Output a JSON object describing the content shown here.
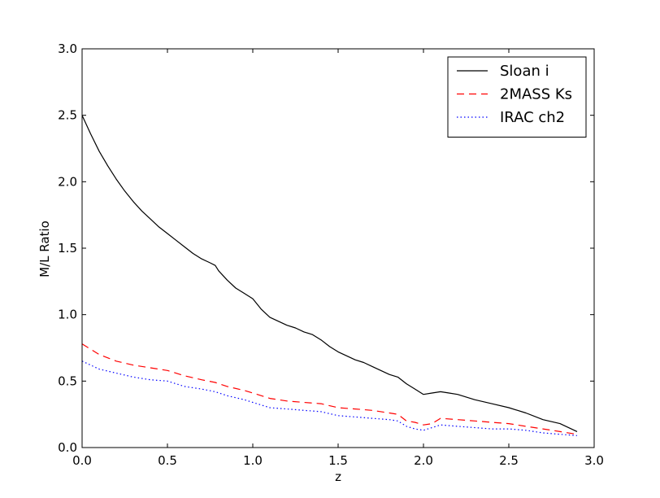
{
  "chart_data": {
    "type": "line",
    "title": "",
    "xlabel": "z",
    "ylabel": "M/L Ratio",
    "xlim": [
      0.0,
      3.0
    ],
    "ylim": [
      0.0,
      3.0
    ],
    "xticks": [
      "0.0",
      "0.5",
      "1.0",
      "1.5",
      "2.0",
      "2.5",
      "3.0"
    ],
    "yticks": [
      "0.0",
      "0.5",
      "1.0",
      "1.5",
      "2.0",
      "2.5",
      "3.0"
    ],
    "grid": false,
    "legend_position": "top-right",
    "series": [
      {
        "name": "Sloan i",
        "color": "#000000",
        "style": "solid",
        "x": [
          0.0,
          0.05,
          0.1,
          0.15,
          0.2,
          0.25,
          0.3,
          0.35,
          0.4,
          0.45,
          0.5,
          0.55,
          0.6,
          0.65,
          0.7,
          0.75,
          0.78,
          0.8,
          0.85,
          0.9,
          0.95,
          1.0,
          1.05,
          1.1,
          1.15,
          1.2,
          1.25,
          1.3,
          1.35,
          1.4,
          1.45,
          1.5,
          1.55,
          1.6,
          1.65,
          1.7,
          1.75,
          1.8,
          1.85,
          1.9,
          1.95,
          2.0,
          2.05,
          2.1,
          2.15,
          2.2,
          2.3,
          2.4,
          2.5,
          2.6,
          2.7,
          2.8,
          2.9
        ],
        "y": [
          2.5,
          2.36,
          2.23,
          2.12,
          2.02,
          1.93,
          1.85,
          1.78,
          1.72,
          1.66,
          1.61,
          1.56,
          1.51,
          1.46,
          1.42,
          1.39,
          1.37,
          1.33,
          1.26,
          1.2,
          1.16,
          1.12,
          1.04,
          0.98,
          0.95,
          0.92,
          0.9,
          0.87,
          0.85,
          0.81,
          0.76,
          0.72,
          0.69,
          0.66,
          0.64,
          0.61,
          0.58,
          0.55,
          0.53,
          0.48,
          0.44,
          0.4,
          0.41,
          0.42,
          0.41,
          0.4,
          0.36,
          0.33,
          0.3,
          0.26,
          0.21,
          0.18,
          0.12
        ]
      },
      {
        "name": "2MASS Ks",
        "color": "#ff0000",
        "style": "dashed",
        "x": [
          0.0,
          0.1,
          0.2,
          0.3,
          0.4,
          0.5,
          0.6,
          0.7,
          0.78,
          0.85,
          0.95,
          1.0,
          1.1,
          1.2,
          1.3,
          1.4,
          1.5,
          1.6,
          1.7,
          1.8,
          1.85,
          1.9,
          1.95,
          2.0,
          2.05,
          2.1,
          2.2,
          2.3,
          2.4,
          2.5,
          2.6,
          2.7,
          2.8,
          2.9
        ],
        "y": [
          0.78,
          0.7,
          0.65,
          0.62,
          0.6,
          0.58,
          0.54,
          0.51,
          0.49,
          0.46,
          0.43,
          0.41,
          0.37,
          0.35,
          0.34,
          0.33,
          0.3,
          0.29,
          0.28,
          0.26,
          0.25,
          0.2,
          0.19,
          0.17,
          0.18,
          0.22,
          0.21,
          0.2,
          0.19,
          0.18,
          0.16,
          0.14,
          0.12,
          0.1
        ]
      },
      {
        "name": "IRAC ch2",
        "color": "#0000ff",
        "style": "dotted",
        "x": [
          0.0,
          0.1,
          0.2,
          0.3,
          0.4,
          0.5,
          0.6,
          0.7,
          0.78,
          0.85,
          0.95,
          1.0,
          1.1,
          1.2,
          1.3,
          1.4,
          1.5,
          1.6,
          1.7,
          1.8,
          1.85,
          1.9,
          1.95,
          2.0,
          2.05,
          2.1,
          2.2,
          2.3,
          2.4,
          2.5,
          2.6,
          2.7,
          2.8,
          2.9
        ],
        "y": [
          0.65,
          0.59,
          0.56,
          0.53,
          0.51,
          0.5,
          0.46,
          0.44,
          0.42,
          0.39,
          0.36,
          0.34,
          0.3,
          0.29,
          0.28,
          0.27,
          0.24,
          0.23,
          0.22,
          0.21,
          0.2,
          0.16,
          0.14,
          0.13,
          0.15,
          0.17,
          0.16,
          0.15,
          0.14,
          0.14,
          0.13,
          0.11,
          0.1,
          0.09
        ]
      }
    ]
  }
}
